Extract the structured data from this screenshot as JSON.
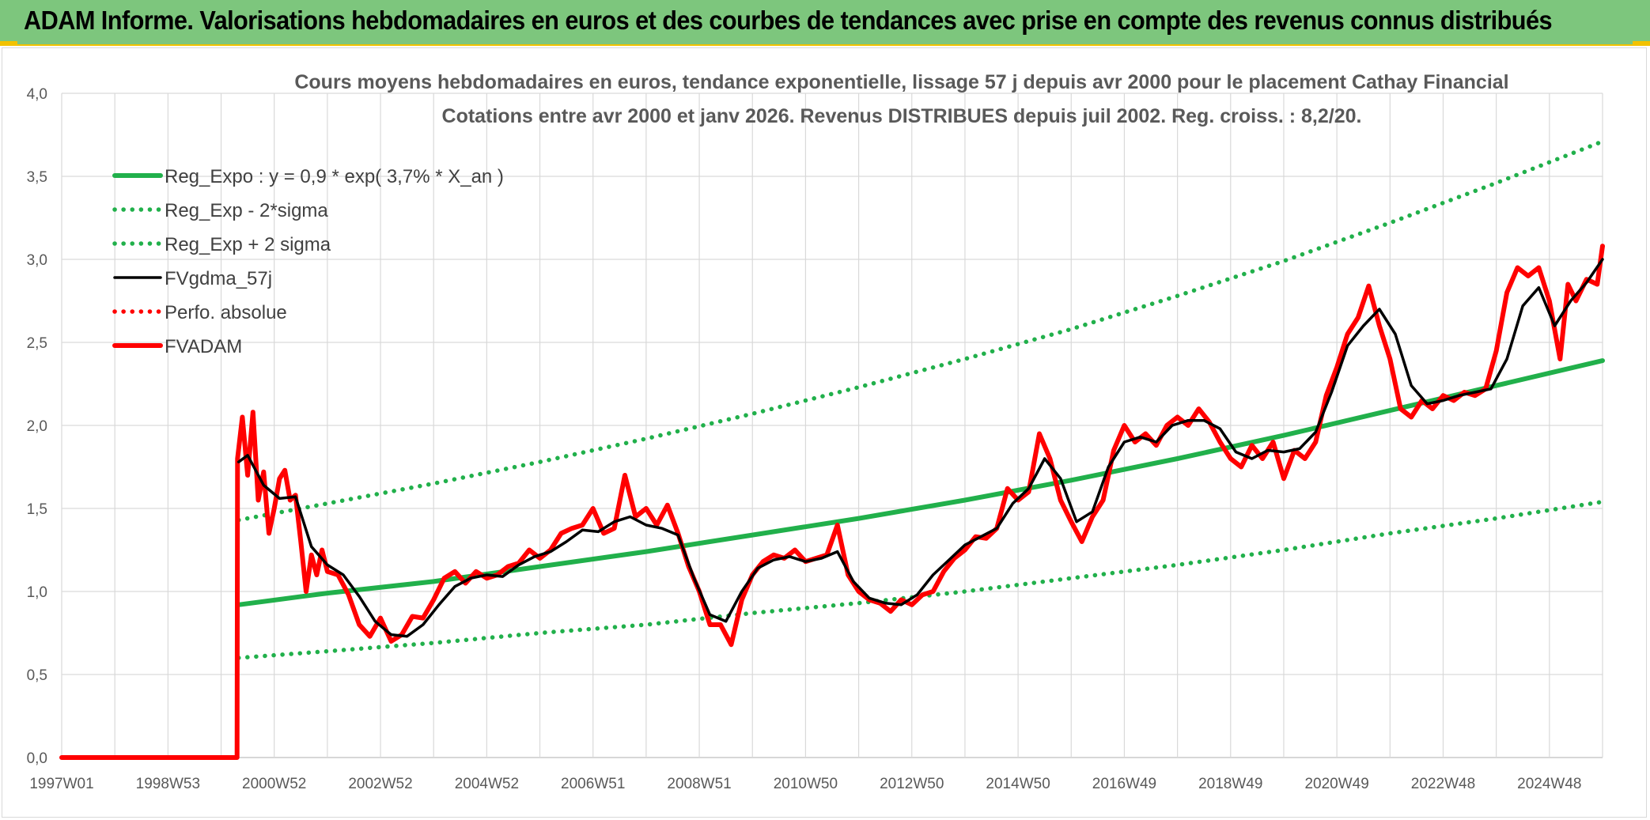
{
  "banner": {
    "title": "ADAM Informe. Valorisations hebdomadaires en euros et des courbes de tendances avec prise en compte des revenus connus distribués"
  },
  "colors": {
    "banner_bg": "#7dc67d",
    "banner_border": "#f2c200",
    "reg_green": "#21b04b",
    "red": "#ff0000",
    "black": "#000000",
    "grid": "#d9d9d9"
  },
  "chart_data": {
    "type": "line",
    "title_line1": "Cours moyens hebdomadaires en euros, tendance exponentielle, lissage 57 j depuis avr 2000 pour le placement Cathay Financial",
    "title_line2": "Cotations entre avr 2000 et janv 2026. Revenus DISTRIBUES depuis juil 2002. Reg. croiss. : 8,2/20.",
    "xlabel": "",
    "ylabel": "",
    "ylim": [
      0,
      4
    ],
    "xlim": [
      1997.0,
      2026.0
    ],
    "y_ticks": [
      "0,0",
      "0,5",
      "1,0",
      "1,5",
      "2,0",
      "2,5",
      "3,0",
      "3,5",
      "4,0"
    ],
    "y_tick_values": [
      0,
      0.5,
      1,
      1.5,
      2,
      2.5,
      3,
      3.5,
      4
    ],
    "x_ticks": [
      {
        "label": "1997W01",
        "x": 1997.0
      },
      {
        "label": "1998W53",
        "x": 1999.0
      },
      {
        "label": "2000W52",
        "x": 2001.0
      },
      {
        "label": "2002W52",
        "x": 2003.0
      },
      {
        "label": "2004W52",
        "x": 2005.0
      },
      {
        "label": "2006W51",
        "x": 2007.0
      },
      {
        "label": "2008W51",
        "x": 2009.0
      },
      {
        "label": "2010W50",
        "x": 2011.0
      },
      {
        "label": "2012W50",
        "x": 2013.0
      },
      {
        "label": "2014W50",
        "x": 2015.0
      },
      {
        "label": "2016W49",
        "x": 2017.0
      },
      {
        "label": "2018W49",
        "x": 2019.0
      },
      {
        "label": "2020W49",
        "x": 2021.0
      },
      {
        "label": "2022W48",
        "x": 2023.0
      },
      {
        "label": "2024W48",
        "x": 2025.0
      }
    ],
    "grid": true,
    "legend_position": "top-left",
    "series": [
      {
        "name": "Reg_Expo : y = 0,9 * exp( 3,7% *  X_an )",
        "style": "solid-thick",
        "color": "#21b04b",
        "x": [
          2000.33,
          2002,
          2004,
          2006,
          2008,
          2010,
          2012,
          2014,
          2016,
          2018,
          2020,
          2022,
          2024,
          2026.0
        ],
        "y": [
          0.92,
          0.99,
          1.06,
          1.15,
          1.24,
          1.34,
          1.44,
          1.55,
          1.67,
          1.8,
          1.94,
          2.09,
          2.24,
          2.39
        ]
      },
      {
        "name": "Reg_Exp - 2*sigma",
        "style": "dotted",
        "color": "#21b04b",
        "x": [
          2000.33,
          2002,
          2004,
          2006,
          2008,
          2010,
          2012,
          2014,
          2016,
          2018,
          2020,
          2022,
          2024,
          2026.0
        ],
        "y": [
          0.6,
          0.64,
          0.69,
          0.75,
          0.8,
          0.87,
          0.93,
          1.0,
          1.08,
          1.16,
          1.25,
          1.35,
          1.44,
          1.54
        ]
      },
      {
        "name": "Reg_Exp + 2 sigma",
        "style": "dotted",
        "color": "#21b04b",
        "x": [
          2000.33,
          2002,
          2004,
          2006,
          2008,
          2010,
          2012,
          2014,
          2016,
          2018,
          2020,
          2022,
          2024,
          2026.0
        ],
        "y": [
          1.43,
          1.53,
          1.65,
          1.78,
          1.92,
          2.07,
          2.23,
          2.4,
          2.58,
          2.78,
          2.99,
          3.22,
          3.46,
          3.71
        ]
      },
      {
        "name": "FVgdma_57j",
        "style": "solid",
        "color": "#000000",
        "x": [
          2000.33,
          2000.5,
          2000.8,
          2001.1,
          2001.4,
          2001.7,
          2002.0,
          2002.3,
          2002.6,
          2002.9,
          2003.2,
          2003.5,
          2003.8,
          2004.1,
          2004.4,
          2004.7,
          2005.0,
          2005.3,
          2005.6,
          2005.9,
          2006.2,
          2006.5,
          2006.8,
          2007.1,
          2007.4,
          2007.7,
          2008.0,
          2008.3,
          2008.6,
          2008.9,
          2009.2,
          2009.5,
          2009.8,
          2010.1,
          2010.4,
          2010.7,
          2011.0,
          2011.3,
          2011.6,
          2011.9,
          2012.2,
          2012.5,
          2012.8,
          2013.1,
          2013.4,
          2013.7,
          2014.0,
          2014.3,
          2014.6,
          2014.9,
          2015.2,
          2015.5,
          2015.8,
          2016.1,
          2016.4,
          2016.7,
          2017.0,
          2017.3,
          2017.6,
          2017.9,
          2018.2,
          2018.5,
          2018.8,
          2019.1,
          2019.4,
          2019.7,
          2020.0,
          2020.3,
          2020.6,
          2020.9,
          2021.2,
          2021.5,
          2021.8,
          2022.1,
          2022.4,
          2022.7,
          2023.0,
          2023.3,
          2023.6,
          2023.9,
          2024.2,
          2024.5,
          2024.8,
          2025.1,
          2025.4,
          2025.7,
          2026.0
        ],
        "y": [
          1.78,
          1.82,
          1.64,
          1.56,
          1.57,
          1.27,
          1.16,
          1.1,
          0.97,
          0.82,
          0.74,
          0.73,
          0.8,
          0.92,
          1.03,
          1.08,
          1.1,
          1.09,
          1.16,
          1.21,
          1.24,
          1.3,
          1.37,
          1.36,
          1.42,
          1.45,
          1.4,
          1.38,
          1.34,
          1.08,
          0.86,
          0.82,
          1.0,
          1.14,
          1.19,
          1.21,
          1.18,
          1.2,
          1.24,
          1.06,
          0.96,
          0.93,
          0.92,
          0.98,
          1.1,
          1.19,
          1.28,
          1.33,
          1.38,
          1.53,
          1.62,
          1.8,
          1.68,
          1.42,
          1.48,
          1.75,
          1.9,
          1.93,
          1.9,
          2.0,
          2.03,
          2.03,
          1.98,
          1.84,
          1.8,
          1.85,
          1.84,
          1.86,
          1.96,
          2.2,
          2.48,
          2.6,
          2.7,
          2.55,
          2.24,
          2.13,
          2.15,
          2.18,
          2.2,
          2.22,
          2.4,
          2.72,
          2.83,
          2.6,
          2.75,
          2.86,
          3.0
        ]
      },
      {
        "name": "Perfo. absolue",
        "style": "dotted",
        "color": "#ff0000",
        "x": [],
        "y": []
      },
      {
        "name": "FVADAM",
        "style": "solid-thick",
        "color": "#ff0000",
        "x": [
          1997.0,
          2000.3,
          2000.31,
          2000.4,
          2000.5,
          2000.6,
          2000.7,
          2000.8,
          2000.9,
          2001.0,
          2001.1,
          2001.2,
          2001.3,
          2001.4,
          2001.5,
          2001.6,
          2001.7,
          2001.8,
          2001.9,
          2002.0,
          2002.2,
          2002.4,
          2002.6,
          2002.8,
          2003.0,
          2003.2,
          2003.4,
          2003.6,
          2003.8,
          2004.0,
          2004.2,
          2004.4,
          2004.6,
          2004.8,
          2005.0,
          2005.2,
          2005.4,
          2005.6,
          2005.8,
          2006.0,
          2006.2,
          2006.4,
          2006.6,
          2006.8,
          2007.0,
          2007.2,
          2007.4,
          2007.6,
          2007.8,
          2008.0,
          2008.2,
          2008.4,
          2008.6,
          2008.8,
          2009.0,
          2009.1,
          2009.2,
          2009.4,
          2009.6,
          2009.8,
          2010.0,
          2010.2,
          2010.4,
          2010.6,
          2010.8,
          2011.0,
          2011.2,
          2011.4,
          2011.6,
          2011.8,
          2012.0,
          2012.2,
          2012.4,
          2012.6,
          2012.8,
          2013.0,
          2013.2,
          2013.4,
          2013.6,
          2013.8,
          2014.0,
          2014.2,
          2014.4,
          2014.6,
          2014.8,
          2015.0,
          2015.2,
          2015.4,
          2015.6,
          2015.8,
          2016.0,
          2016.2,
          2016.4,
          2016.6,
          2016.8,
          2017.0,
          2017.2,
          2017.4,
          2017.6,
          2017.8,
          2018.0,
          2018.2,
          2018.4,
          2018.6,
          2018.8,
          2019.0,
          2019.2,
          2019.4,
          2019.6,
          2019.8,
          2020.0,
          2020.2,
          2020.4,
          2020.6,
          2020.8,
          2021.0,
          2021.2,
          2021.4,
          2021.6,
          2021.8,
          2022.0,
          2022.2,
          2022.4,
          2022.6,
          2022.8,
          2023.0,
          2023.2,
          2023.4,
          2023.6,
          2023.8,
          2024.0,
          2024.2,
          2024.4,
          2024.6,
          2024.8,
          2025.0,
          2025.2,
          2025.35,
          2025.5,
          2025.7,
          2025.9,
          2026.0
        ],
        "y": [
          0.0,
          0.0,
          1.8,
          2.05,
          1.7,
          2.08,
          1.55,
          1.72,
          1.35,
          1.5,
          1.68,
          1.73,
          1.55,
          1.58,
          1.3,
          1.0,
          1.22,
          1.1,
          1.25,
          1.12,
          1.1,
          0.98,
          0.8,
          0.73,
          0.84,
          0.7,
          0.74,
          0.85,
          0.84,
          0.95,
          1.08,
          1.12,
          1.05,
          1.12,
          1.08,
          1.1,
          1.15,
          1.17,
          1.25,
          1.2,
          1.25,
          1.35,
          1.38,
          1.4,
          1.5,
          1.35,
          1.38,
          1.7,
          1.45,
          1.5,
          1.4,
          1.52,
          1.35,
          1.15,
          1.0,
          0.9,
          0.8,
          0.8,
          0.68,
          0.95,
          1.1,
          1.18,
          1.22,
          1.2,
          1.25,
          1.18,
          1.2,
          1.22,
          1.4,
          1.1,
          1.0,
          0.95,
          0.93,
          0.88,
          0.95,
          0.92,
          0.98,
          1.0,
          1.12,
          1.2,
          1.25,
          1.33,
          1.32,
          1.38,
          1.62,
          1.55,
          1.6,
          1.95,
          1.8,
          1.55,
          1.42,
          1.3,
          1.45,
          1.55,
          1.85,
          2.0,
          1.9,
          1.95,
          1.88,
          2.0,
          2.05,
          2.0,
          2.1,
          2.02,
          1.9,
          1.8,
          1.75,
          1.88,
          1.8,
          1.9,
          1.68,
          1.85,
          1.8,
          1.9,
          2.18,
          2.35,
          2.55,
          2.65,
          2.84,
          2.6,
          2.4,
          2.1,
          2.05,
          2.15,
          2.1,
          2.18,
          2.15,
          2.2,
          2.18,
          2.22,
          2.45,
          2.8,
          2.95,
          2.9,
          2.95,
          2.75,
          2.4,
          2.85,
          2.75,
          2.88,
          2.85,
          3.08
        ]
      }
    ]
  }
}
